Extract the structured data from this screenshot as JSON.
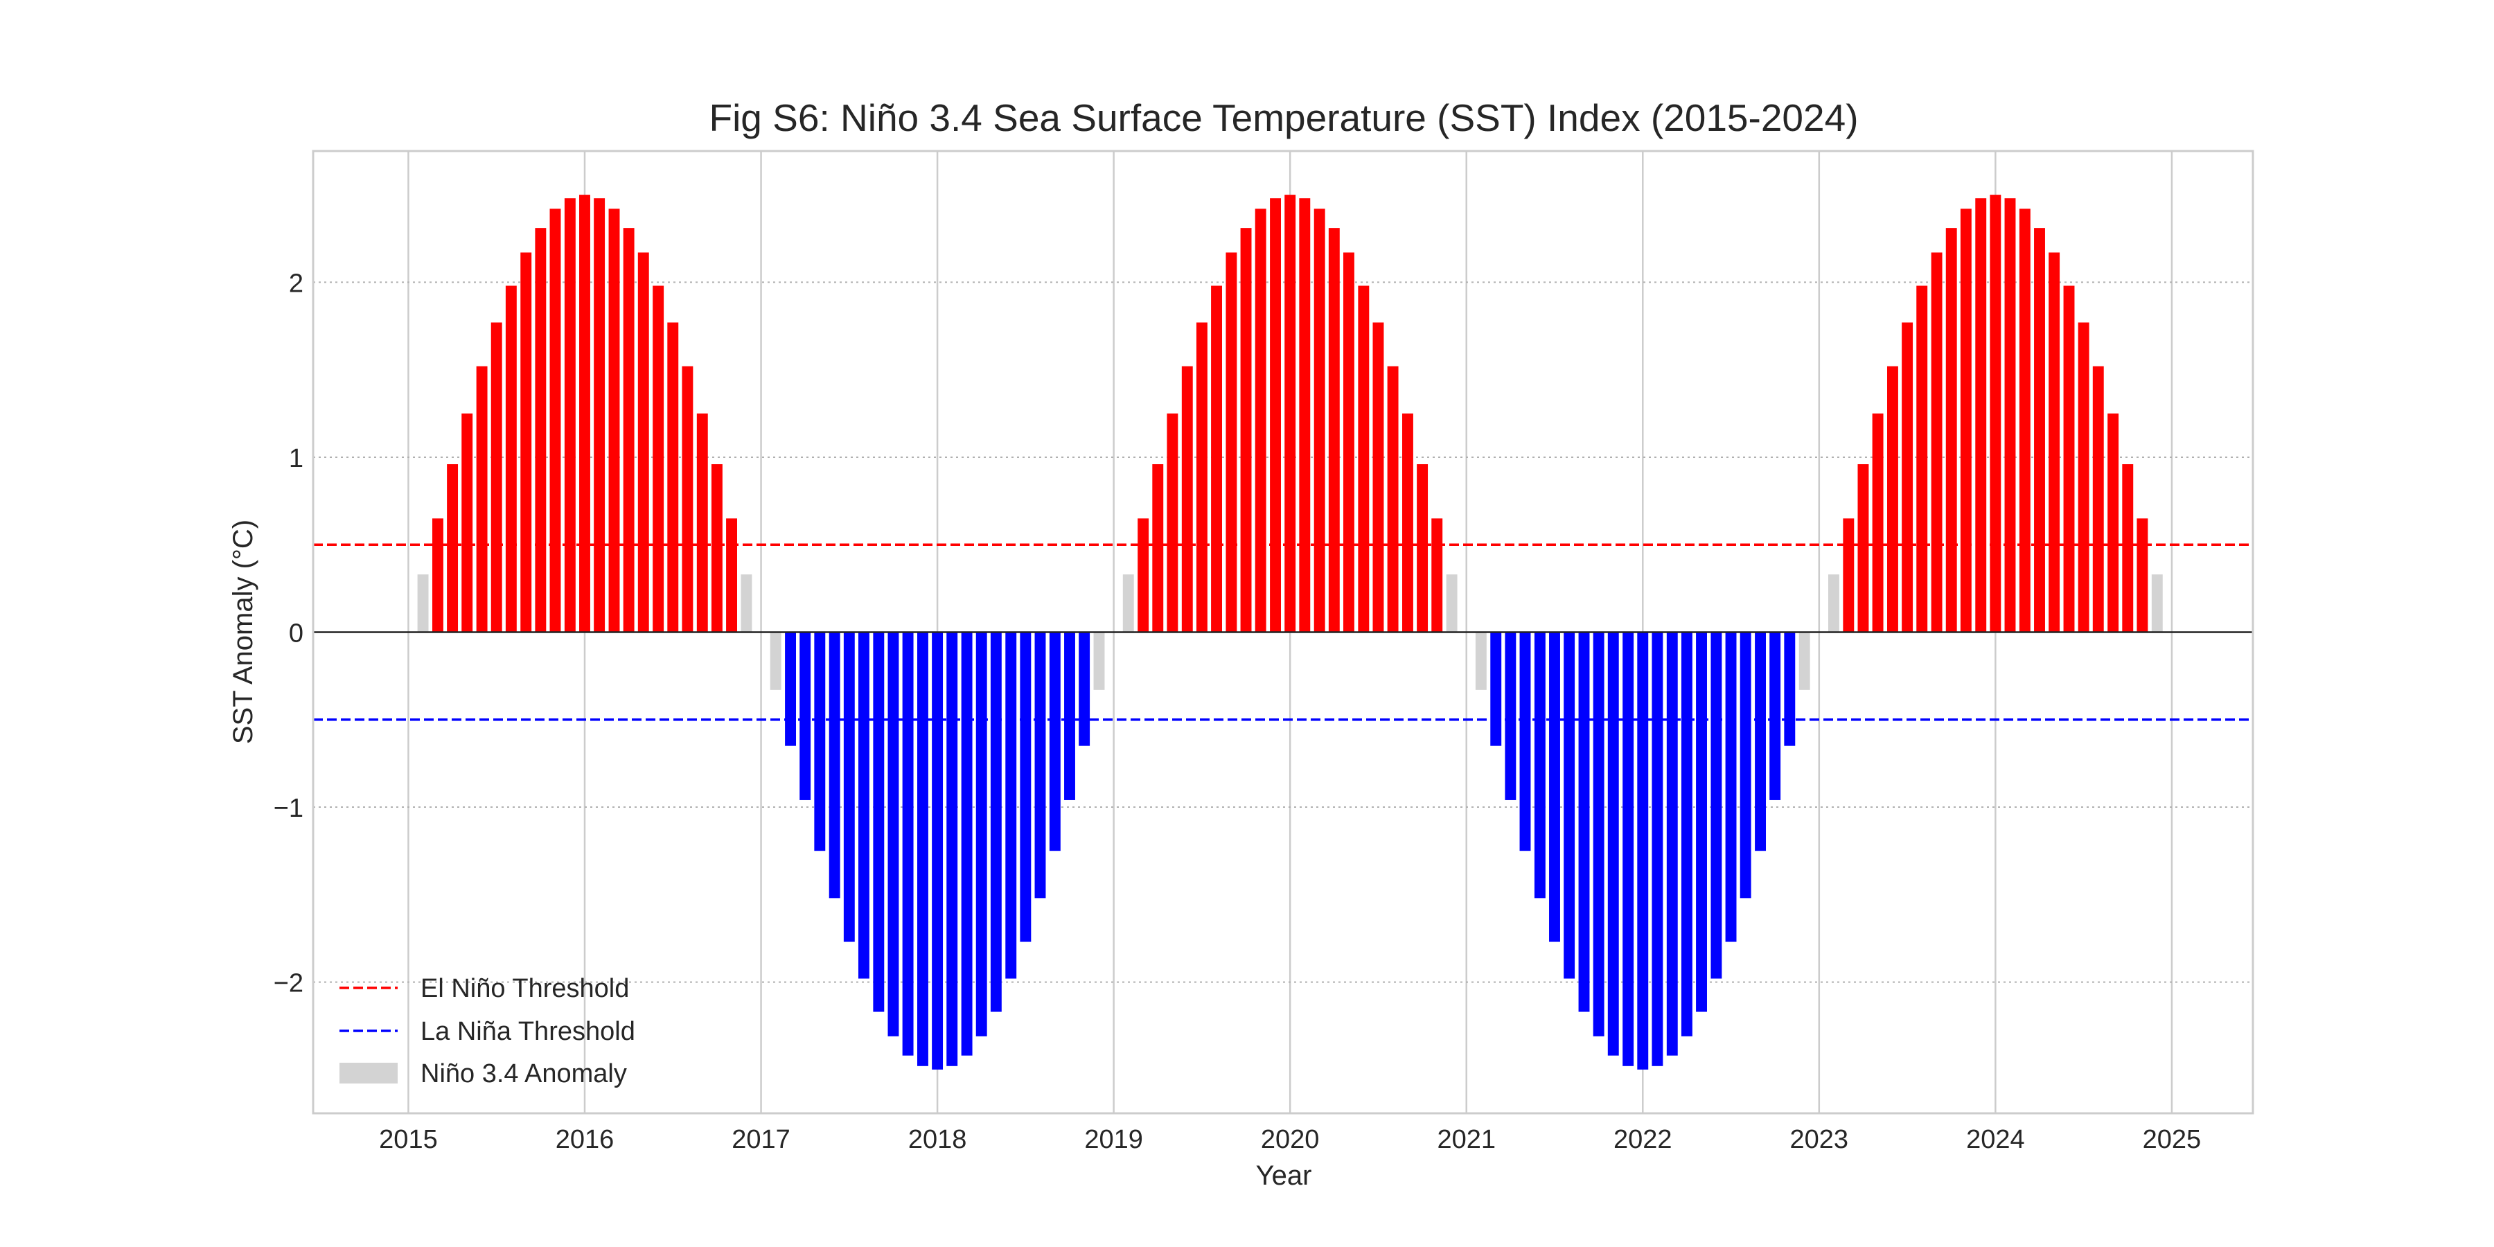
{
  "chart_data": {
    "type": "bar",
    "title": "Fig S6: Niño 3.4 Sea Surface Temperature (SST) Index (2015-2024)",
    "xlabel": "Year",
    "ylabel": "SST Anomaly (°C)",
    "xlim": [
      2014.46,
      2025.46
    ],
    "ylim": [
      -2.75,
      2.75
    ],
    "xticks": [
      2015,
      2016,
      2017,
      2018,
      2019,
      2020,
      2021,
      2022,
      2023,
      2024,
      2025
    ],
    "yticks": [
      -2,
      -1,
      0,
      1,
      2
    ],
    "ytick_labels": [
      "−2",
      "−1",
      "0",
      "1",
      "2"
    ],
    "grid": true,
    "legend_position": "lower-left",
    "thresholds": [
      {
        "name": "El Niño Threshold",
        "value": 0.5,
        "color": "#ff0000",
        "style": "dashed"
      },
      {
        "name": "La Niña Threshold",
        "value": -0.5,
        "color": "#0000ff",
        "style": "dashed"
      }
    ],
    "series": [
      {
        "name": "Niño 3.4 Anomaly",
        "colors": {
          "el_nino": "#ff0000",
          "la_nina": "#0000ff",
          "neutral": "#d3d3d3"
        },
        "x": [
          2015.0,
          2015.083,
          2015.167,
          2015.25,
          2015.333,
          2015.417,
          2015.5,
          2015.583,
          2015.667,
          2015.75,
          2015.833,
          2015.917,
          2016.0,
          2016.083,
          2016.167,
          2016.25,
          2016.333,
          2016.417,
          2016.5,
          2016.583,
          2016.667,
          2016.75,
          2016.833,
          2016.917,
          2017.0,
          2017.083,
          2017.167,
          2017.25,
          2017.333,
          2017.417,
          2017.5,
          2017.583,
          2017.667,
          2017.75,
          2017.833,
          2017.917,
          2018.0,
          2018.083,
          2018.167,
          2018.25,
          2018.333,
          2018.417,
          2018.5,
          2018.583,
          2018.667,
          2018.75,
          2018.833,
          2018.917,
          2019.0,
          2019.083,
          2019.167,
          2019.25,
          2019.333,
          2019.417,
          2019.5,
          2019.583,
          2019.667,
          2019.75,
          2019.833,
          2019.917,
          2020.0,
          2020.083,
          2020.167,
          2020.25,
          2020.333,
          2020.417,
          2020.5,
          2020.583,
          2020.667,
          2020.75,
          2020.833,
          2020.917,
          2021.0,
          2021.083,
          2021.167,
          2021.25,
          2021.333,
          2021.417,
          2021.5,
          2021.583,
          2021.667,
          2021.75,
          2021.833,
          2021.917,
          2022.0,
          2022.083,
          2022.167,
          2022.25,
          2022.333,
          2022.417,
          2022.5,
          2022.583,
          2022.667,
          2022.75,
          2022.833,
          2022.917,
          2023.0,
          2023.083,
          2023.167,
          2023.25,
          2023.333,
          2023.417,
          2023.5,
          2023.583,
          2023.667,
          2023.75,
          2023.833,
          2023.917,
          2024.0,
          2024.083,
          2024.167,
          2024.25,
          2024.333,
          2024.417,
          2024.5,
          2024.583,
          2024.667,
          2024.75,
          2024.833,
          2024.917
        ],
        "values": [
          0.0,
          0.33,
          0.65,
          0.96,
          1.25,
          1.52,
          1.77,
          1.98,
          2.17,
          2.31,
          2.42,
          2.48,
          2.5,
          2.48,
          2.42,
          2.31,
          2.17,
          1.98,
          1.77,
          1.52,
          1.25,
          0.96,
          0.65,
          0.33,
          0.0,
          -0.33,
          -0.65,
          -0.96,
          -1.25,
          -1.52,
          -1.77,
          -1.98,
          -2.17,
          -2.31,
          -2.42,
          -2.48,
          -2.5,
          -2.48,
          -2.42,
          -2.31,
          -2.17,
          -1.98,
          -1.77,
          -1.52,
          -1.25,
          -0.96,
          -0.65,
          -0.33,
          0.0,
          0.33,
          0.65,
          0.96,
          1.25,
          1.52,
          1.77,
          1.98,
          2.17,
          2.31,
          2.42,
          2.48,
          2.5,
          2.48,
          2.42,
          2.31,
          2.17,
          1.98,
          1.77,
          1.52,
          1.25,
          0.96,
          0.65,
          0.33,
          0.0,
          -0.33,
          -0.65,
          -0.96,
          -1.25,
          -1.52,
          -1.77,
          -1.98,
          -2.17,
          -2.31,
          -2.42,
          -2.48,
          -2.5,
          -2.48,
          -2.42,
          -2.31,
          -2.17,
          -1.98,
          -1.77,
          -1.52,
          -1.25,
          -0.96,
          -0.65,
          -0.33,
          0.0,
          0.33,
          0.65,
          0.96,
          1.25,
          1.52,
          1.77,
          1.98,
          2.17,
          2.31,
          2.42,
          2.48,
          2.5,
          2.48,
          2.42,
          2.31,
          2.17,
          1.98,
          1.77,
          1.52,
          1.25,
          0.96,
          0.65,
          0.33
        ]
      }
    ]
  }
}
